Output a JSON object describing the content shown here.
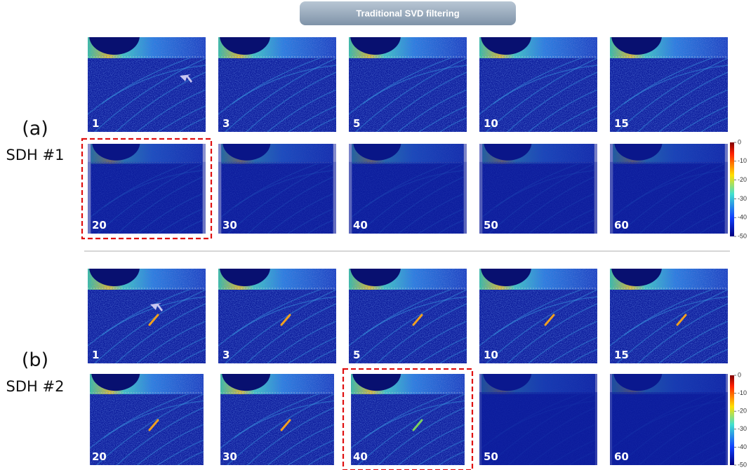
{
  "header": {
    "title": "Traditional SVD filtering"
  },
  "groups": [
    {
      "label": "(a)",
      "name": "SDH #1",
      "panels": [
        1,
        3,
        5,
        10,
        15,
        20,
        30,
        40,
        50,
        60
      ],
      "colorbar_ticks": [
        0,
        -10,
        -20,
        -30,
        -40,
        -50
      ]
    },
    {
      "label": "(b)",
      "name": "SDH #2",
      "panels": [
        1,
        3,
        5,
        10,
        15,
        20,
        30,
        40,
        50,
        60
      ],
      "colorbar_ticks": [
        0,
        -10,
        -20,
        -30,
        -40,
        -50
      ]
    }
  ]
}
